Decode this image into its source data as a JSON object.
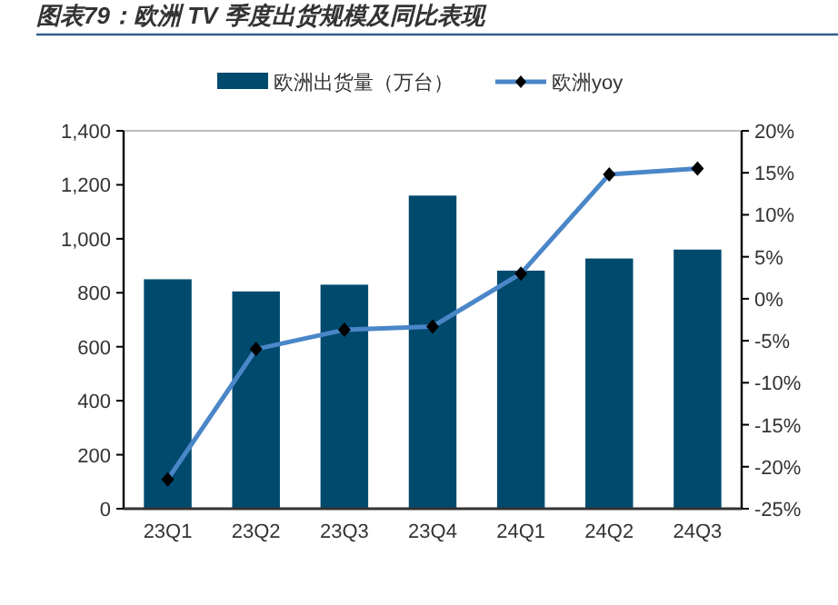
{
  "chart_data": {
    "type": "bar",
    "title": "图表79：欧洲 TV 季度出货规模及同比表现",
    "categories": [
      "23Q1",
      "23Q2",
      "23Q3",
      "23Q4",
      "24Q1",
      "24Q2",
      "24Q3"
    ],
    "series": [
      {
        "name": "欧洲出货量（万台）",
        "color": "#004a6e",
        "values": [
          850,
          805,
          830,
          1160,
          882,
          927,
          960
        ]
      },
      {
        "name": "欧洲yoy",
        "type": "line",
        "axis": "y2",
        "color": "#4a86c8",
        "marker": "diamond",
        "values": [
          -21.5,
          -6.0,
          -3.7,
          -3.3,
          3.0,
          14.8,
          15.5
        ]
      }
    ],
    "ylim": [
      0,
      1400
    ],
    "yticks": [
      {
        "value": 0,
        "label": "0"
      },
      {
        "value": 200,
        "label": "200"
      },
      {
        "value": 400,
        "label": "400"
      },
      {
        "value": 600,
        "label": "600"
      },
      {
        "value": 800,
        "label": "800"
      },
      {
        "value": 1000,
        "label": "1,000"
      },
      {
        "value": 1200,
        "label": "1,200"
      },
      {
        "value": 1400,
        "label": "1,400"
      }
    ],
    "y2lim": [
      -25,
      20
    ],
    "y2ticks": [
      {
        "value": -25,
        "label": "-25%"
      },
      {
        "value": -20,
        "label": "-20%"
      },
      {
        "value": -15,
        "label": "-15%"
      },
      {
        "value": -10,
        "label": "-10%"
      },
      {
        "value": -5,
        "label": "-5%"
      },
      {
        "value": 0,
        "label": "0%"
      },
      {
        "value": 5,
        "label": "5%"
      },
      {
        "value": 10,
        "label": "10%"
      },
      {
        "value": 15,
        "label": "15%"
      },
      {
        "value": 20,
        "label": "20%"
      }
    ],
    "legend": "top",
    "grid": false
  }
}
